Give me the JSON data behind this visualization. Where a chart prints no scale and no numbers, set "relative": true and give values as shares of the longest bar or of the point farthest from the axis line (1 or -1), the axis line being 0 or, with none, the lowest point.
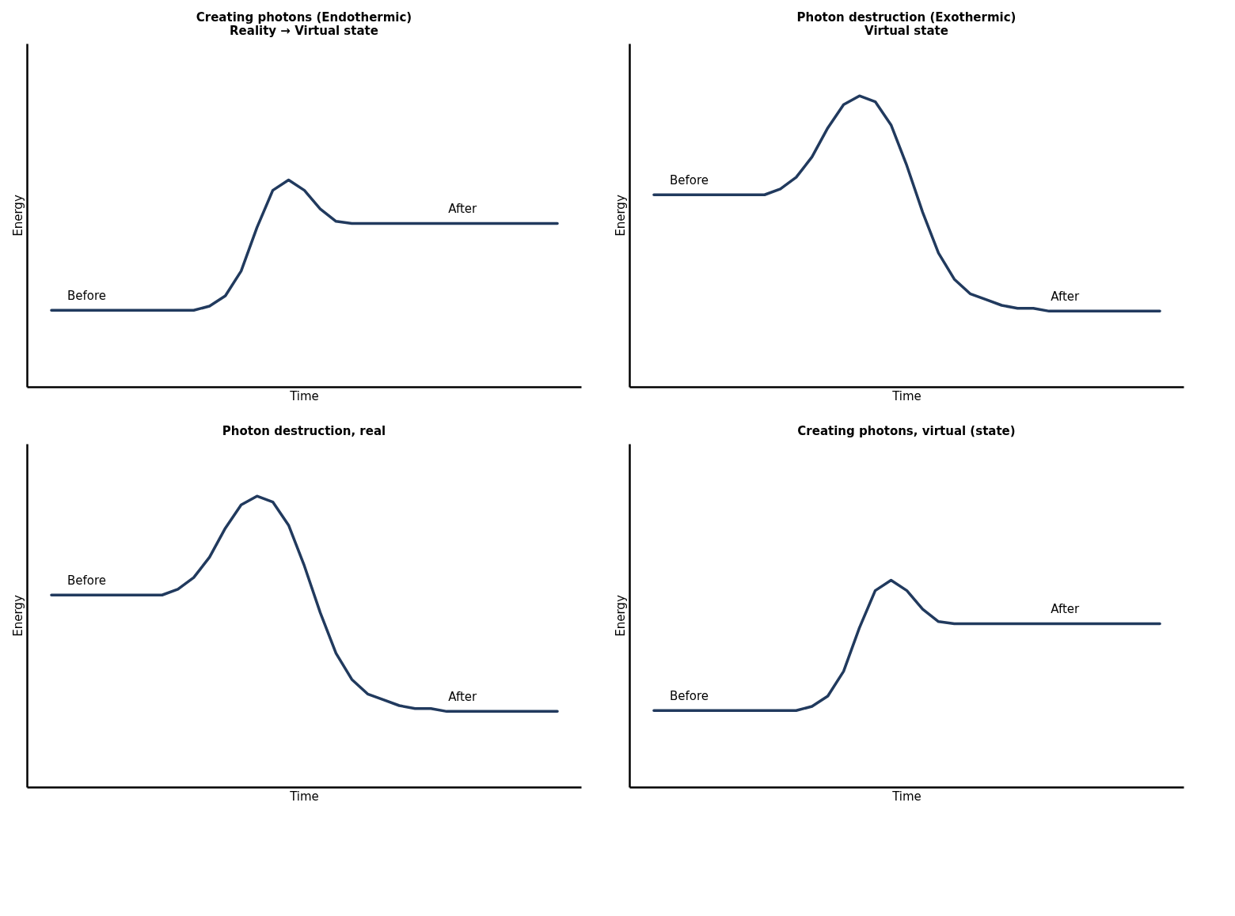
{
  "chart_data": [
    {
      "type": "line",
      "relative": true,
      "title": "Creating photons (Endothermic)\nReality → Virtual state",
      "xlabel": "Time",
      "ylabel": "Energy",
      "tick_labels": false,
      "categories": [
        null,
        null,
        null,
        null,
        null,
        null,
        null,
        null,
        null,
        null,
        null,
        null,
        null,
        null,
        null,
        null,
        null,
        null,
        null,
        null,
        null,
        null,
        null,
        null,
        null,
        null,
        null,
        null,
        null,
        null,
        null,
        null,
        null
      ],
      "series": [
        {
          "color": "#213a5e",
          "values": [
            0.37,
            0.37,
            0.37,
            0.37,
            0.37,
            0.37,
            0.37,
            0.37,
            0.37,
            0.37,
            0.39,
            0.44,
            0.56,
            0.77,
            0.95,
            1,
            0.95,
            0.86,
            0.8,
            0.79,
            0.79,
            0.79,
            0.79,
            0.79,
            0.79,
            0.79,
            0.79,
            0.79,
            0.79,
            0.79,
            0.79,
            0.79,
            0.79
          ]
        }
      ],
      "annotations": [
        {
          "text": "Before",
          "y": 0.37
        },
        {
          "text": "After",
          "y": 0.79
        }
      ]
    },
    {
      "type": "line",
      "relative": true,
      "title": "Photon destruction (Exothermic)\nVirtual state",
      "xlabel": "Time",
      "ylabel": "Energy",
      "tick_labels": false,
      "categories": [
        null,
        null,
        null,
        null,
        null,
        null,
        null,
        null,
        null,
        null,
        null,
        null,
        null,
        null,
        null,
        null,
        null,
        null,
        null,
        null,
        null,
        null,
        null,
        null,
        null,
        null,
        null,
        null,
        null,
        null,
        null,
        null,
        null
      ],
      "series": [
        {
          "color": "#213a5e",
          "values": [
            0.66,
            0.66,
            0.66,
            0.66,
            0.66,
            0.66,
            0.66,
            0.66,
            0.68,
            0.72,
            0.79,
            0.89,
            0.97,
            1,
            0.98,
            0.9,
            0.76,
            0.6,
            0.46,
            0.37,
            0.32,
            0.3,
            0.28,
            0.27,
            0.27,
            0.26,
            0.26,
            0.26,
            0.26,
            0.26,
            0.26,
            0.26,
            0.26
          ]
        }
      ],
      "annotations": [
        {
          "text": "Before",
          "y": 0.66
        },
        {
          "text": "After",
          "y": 0.26
        }
      ]
    },
    {
      "type": "line",
      "relative": true,
      "title": "Photon destruction, real",
      "xlabel": "Time",
      "ylabel": "Energy",
      "tick_labels": false,
      "categories": [
        null,
        null,
        null,
        null,
        null,
        null,
        null,
        null,
        null,
        null,
        null,
        null,
        null,
        null,
        null,
        null,
        null,
        null,
        null,
        null,
        null,
        null,
        null,
        null,
        null,
        null,
        null,
        null,
        null,
        null,
        null,
        null,
        null
      ],
      "series": [
        {
          "color": "#213a5e",
          "values": [
            0.66,
            0.66,
            0.66,
            0.66,
            0.66,
            0.66,
            0.66,
            0.66,
            0.68,
            0.72,
            0.79,
            0.89,
            0.97,
            1,
            0.98,
            0.9,
            0.76,
            0.6,
            0.46,
            0.37,
            0.32,
            0.3,
            0.28,
            0.27,
            0.27,
            0.26,
            0.26,
            0.26,
            0.26,
            0.26,
            0.26,
            0.26,
            0.26
          ]
        }
      ],
      "annotations": [
        {
          "text": "Before",
          "y": 0.66
        },
        {
          "text": "After",
          "y": 0.26
        }
      ]
    },
    {
      "type": "line",
      "relative": true,
      "title": "Creating photons, virtual (state)",
      "xlabel": "Time",
      "ylabel": "Energy",
      "tick_labels": false,
      "categories": [
        null,
        null,
        null,
        null,
        null,
        null,
        null,
        null,
        null,
        null,
        null,
        null,
        null,
        null,
        null,
        null,
        null,
        null,
        null,
        null,
        null,
        null,
        null,
        null,
        null,
        null,
        null,
        null,
        null,
        null,
        null,
        null,
        null
      ],
      "series": [
        {
          "color": "#213a5e",
          "values": [
            0.37,
            0.37,
            0.37,
            0.37,
            0.37,
            0.37,
            0.37,
            0.37,
            0.37,
            0.37,
            0.39,
            0.44,
            0.56,
            0.77,
            0.95,
            1,
            0.95,
            0.86,
            0.8,
            0.79,
            0.79,
            0.79,
            0.79,
            0.79,
            0.79,
            0.79,
            0.79,
            0.79,
            0.79,
            0.79,
            0.79,
            0.79,
            0.79
          ]
        }
      ],
      "annotations": [
        {
          "text": "Before",
          "y": 0.37
        },
        {
          "text": "After",
          "y": 0.79
        }
      ]
    }
  ]
}
